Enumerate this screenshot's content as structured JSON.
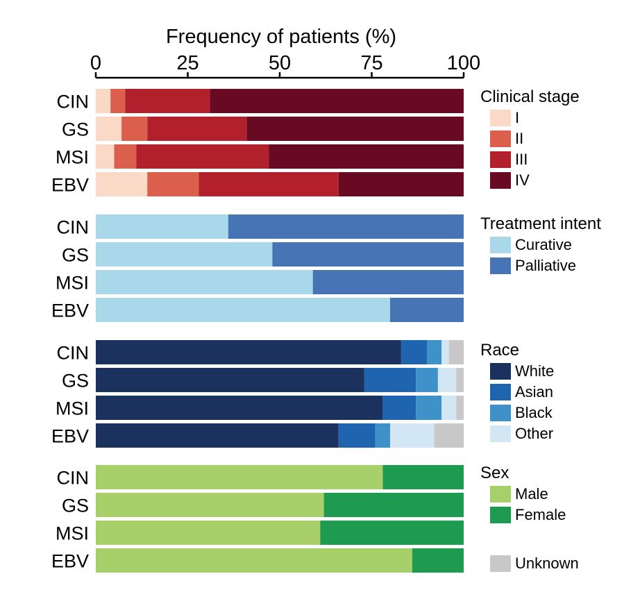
{
  "chart_data": {
    "type": "bar",
    "orientation": "horizontal-stacked-100",
    "title": "Frequency of patients (%)",
    "xlim": [
      0,
      100
    ],
    "x_ticks": [
      "0",
      "25",
      "50",
      "75",
      "100"
    ],
    "x_tick_values": [
      0,
      25,
      50,
      75,
      100
    ],
    "categories": [
      "CIN",
      "GS",
      "MSI",
      "EBV"
    ],
    "panels": [
      {
        "legend_title": "Clinical stage",
        "series": [
          {
            "name": "I",
            "color": "#fad9c7",
            "values": [
              4,
              7,
              5,
              14
            ]
          },
          {
            "name": "II",
            "color": "#dc5e4c",
            "values": [
              4,
              7,
              6,
              14
            ]
          },
          {
            "name": "III",
            "color": "#b2202c",
            "values": [
              23,
              27,
              36,
              38
            ]
          },
          {
            "name": "IV",
            "color": "#680a22",
            "values": [
              69,
              59,
              53,
              34
            ]
          }
        ]
      },
      {
        "legend_title": "Treatment intent",
        "series": [
          {
            "name": "Curative",
            "color": "#a8d8ea",
            "values": [
              36,
              48,
              59,
              80
            ]
          },
          {
            "name": "Palliative",
            "color": "#4674b5",
            "values": [
              64,
              52,
              41,
              20
            ]
          }
        ]
      },
      {
        "legend_title": "Race",
        "series": [
          {
            "name": "White",
            "color": "#1c325e",
            "values": [
              83,
              73,
              78,
              66
            ]
          },
          {
            "name": "Asian",
            "color": "#1f64ae",
            "values": [
              7,
              14,
              9,
              10
            ]
          },
          {
            "name": "Black",
            "color": "#3e92c9",
            "values": [
              4,
              6,
              7,
              4
            ]
          },
          {
            "name": "Other",
            "color": "#d3e6f3",
            "values": [
              2,
              5,
              4,
              12
            ]
          },
          {
            "name": "Unknown",
            "color": "#c8c8c8",
            "values": [
              4,
              2,
              2,
              8
            ],
            "in_legend": false
          }
        ]
      },
      {
        "legend_title": "Sex",
        "series": [
          {
            "name": "Male",
            "color": "#a7d06b",
            "values": [
              78,
              62,
              61,
              86
            ]
          },
          {
            "name": "Female",
            "color": "#1e9a51",
            "values": [
              22,
              38,
              39,
              14
            ]
          }
        ]
      }
    ],
    "extra_legend": {
      "name": "Unknown",
      "color": "#c8c8c8"
    }
  }
}
